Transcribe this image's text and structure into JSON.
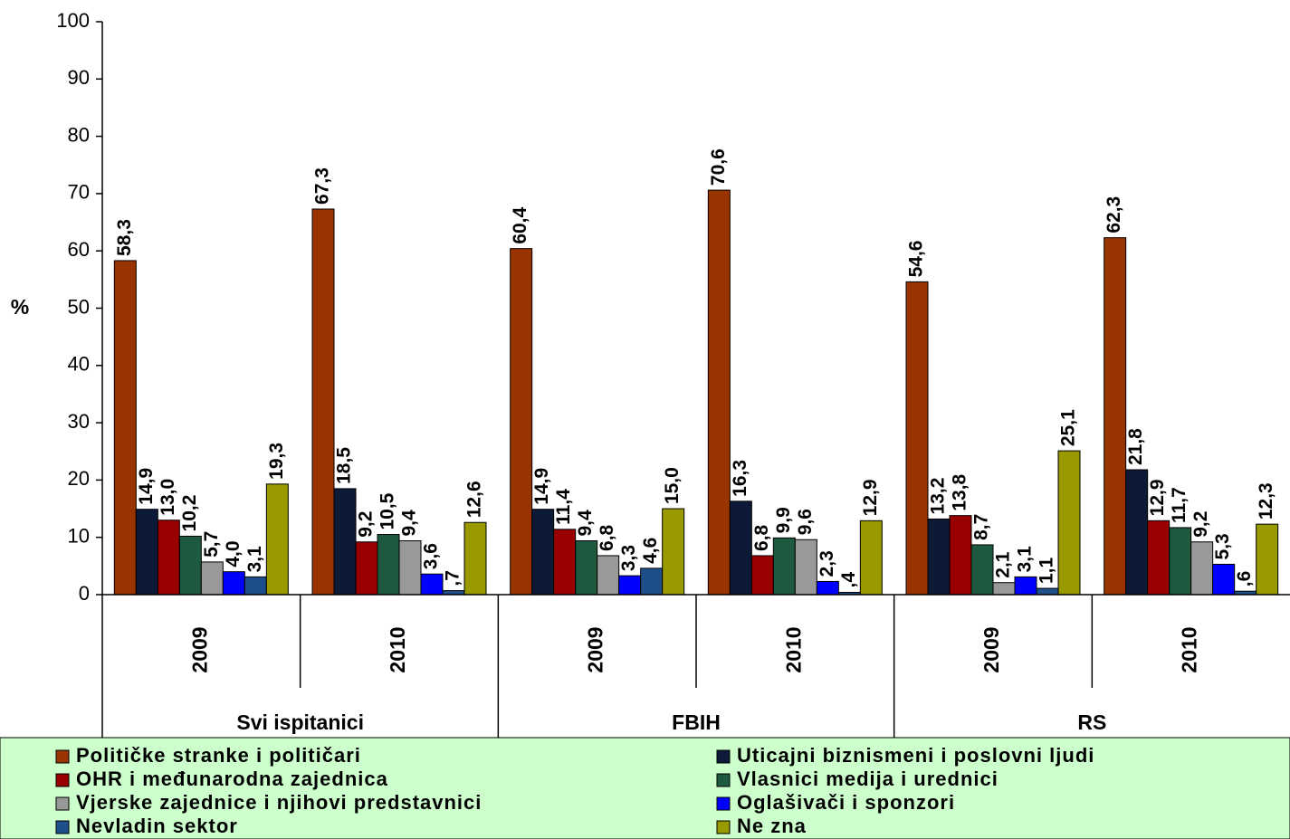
{
  "chart_data": {
    "type": "bar",
    "y_label": "%",
    "categories": [
      "2009",
      "2010",
      "2009",
      "2010",
      "2009",
      "2010"
    ],
    "groups": [
      "Svi ispitanici",
      "FBIH",
      "RS"
    ],
    "ylim": [
      0,
      100
    ],
    "yticks": [
      0,
      10,
      20,
      30,
      40,
      50,
      60,
      70,
      80,
      90,
      100
    ],
    "legend_position": "bottom",
    "series": [
      {
        "name": "Političke stranke i političari",
        "color": "#993300",
        "values": [
          58.3,
          67.3,
          60.4,
          70.6,
          54.6,
          62.3
        ],
        "value_labels": [
          "58,3",
          "67,3",
          "60,4",
          "70,6",
          "54,6",
          "62,3"
        ]
      },
      {
        "name": "Uticajni biznismeni i poslovni ljudi",
        "color": "#0c1a38",
        "values": [
          14.9,
          18.5,
          14.9,
          16.3,
          13.2,
          21.8
        ],
        "value_labels": [
          "14,9",
          "18,5",
          "14,9",
          "16,3",
          "13,2",
          "21,8"
        ]
      },
      {
        "name": "OHR i međunarodna zajednica",
        "color": "#990000",
        "values": [
          13.0,
          9.2,
          11.4,
          6.8,
          13.8,
          12.9
        ],
        "value_labels": [
          "13,0",
          "9,2",
          "11,4",
          "6,8",
          "13,8",
          "12,9"
        ]
      },
      {
        "name": "Vlasnici medija i urednici",
        "color": "#1e5a40",
        "values": [
          10.2,
          10.5,
          9.4,
          9.9,
          8.7,
          11.7
        ],
        "value_labels": [
          "10,2",
          "10,5",
          "9,4",
          "9,9",
          "8,7",
          "11,7"
        ]
      },
      {
        "name": "Vjerske zajednice i njihovi predstavnici",
        "color": "#999999",
        "values": [
          5.7,
          9.4,
          6.8,
          9.6,
          2.1,
          9.2
        ],
        "value_labels": [
          "5,7",
          "9,4",
          "6,8",
          "9,6",
          "2,1",
          "9,2"
        ]
      },
      {
        "name": "Oglašivači i sponzori",
        "color": "#0000ff",
        "values": [
          4.0,
          3.6,
          3.3,
          2.3,
          3.1,
          5.3
        ],
        "value_labels": [
          "4,0",
          "3,6",
          "3,3",
          "2,3",
          "3,1",
          "5,3"
        ]
      },
      {
        "name": "Nevladin sektor",
        "color": "#1f4f8a",
        "values": [
          3.1,
          0.7,
          4.6,
          0.4,
          1.1,
          0.6
        ],
        "value_labels": [
          "3,1",
          ",7",
          "4,6",
          ",4",
          "1,1",
          ",6"
        ]
      },
      {
        "name": "Ne zna",
        "color": "#999900",
        "values": [
          19.3,
          12.6,
          15.0,
          12.9,
          25.1,
          12.3
        ],
        "value_labels": [
          "19,3",
          "12,6",
          "15,0",
          "12,9",
          "25,1",
          "12,3"
        ]
      }
    ]
  }
}
